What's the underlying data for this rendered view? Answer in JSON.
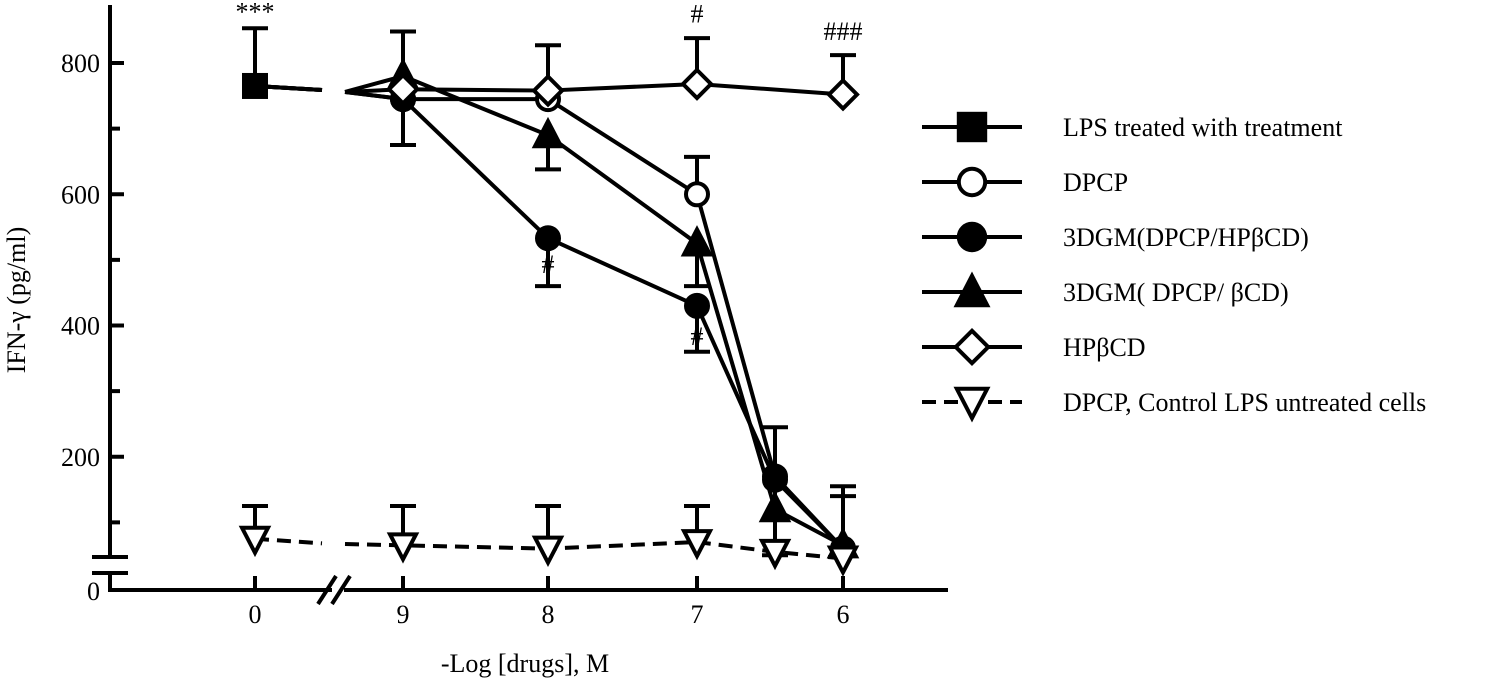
{
  "chart_data": {
    "type": "line",
    "title": "",
    "xlabel": "-Log [drugs], M",
    "ylabel": "IFN-γ (pg/ml)",
    "x_tick_labels": [
      "0",
      "9",
      "8",
      "7",
      "6"
    ],
    "x_values": [
      0,
      9,
      8,
      7,
      6.5,
      6
    ],
    "y_ticks": [
      0,
      200,
      400,
      600,
      800
    ],
    "ylim": [
      0,
      850
    ],
    "axis_breaks": [
      "x between 0 and 9",
      "y between 0 and 200"
    ],
    "legend_position": "right",
    "series": [
      {
        "name": "LPS treated with treatment",
        "marker": "square-filled",
        "line": "solid",
        "x": [
          0
        ],
        "y": [
          765
        ],
        "err": [
          88
        ]
      },
      {
        "name": "DPCP",
        "marker": "circle-open",
        "line": "solid",
        "x": [
          9,
          8,
          7,
          6.5,
          6
        ],
        "y": [
          745,
          745,
          600,
          170,
          60
        ]
      },
      {
        "name": "3DGM(DPCP/HPβCD)",
        "marker": "circle-filled",
        "line": "solid",
        "x": [
          9,
          8,
          7,
          6.5,
          6
        ],
        "y": [
          745,
          533,
          430,
          165,
          60
        ]
      },
      {
        "name": "3DGM( DPCP/ βCD)",
        "marker": "triangle-up-filled",
        "line": "solid",
        "x": [
          9,
          8,
          7,
          6.5,
          6
        ],
        "y": [
          780,
          690,
          525,
          120,
          65
        ]
      },
      {
        "name": "HPβCD",
        "marker": "diamond-open",
        "line": "solid",
        "x": [
          9,
          8,
          7,
          6
        ],
        "y": [
          760,
          758,
          768,
          752
        ]
      },
      {
        "name": "DPCP, Control LPS untreated cells",
        "marker": "triangle-down-open",
        "line": "dashed",
        "x": [
          0,
          9,
          8,
          7,
          6.5,
          6
        ],
        "y": [
          75,
          65,
          60,
          70,
          55,
          45
        ]
      }
    ],
    "error_bars": [
      {
        "x": 0,
        "y": 765,
        "top": 853
      },
      {
        "x": 9,
        "y": 760,
        "top": 848,
        "bottom": 675
      },
      {
        "x": 8,
        "y": 758,
        "top": 827
      },
      {
        "x": 8,
        "y": 690,
        "bottom": 638
      },
      {
        "x": 8,
        "y": 533,
        "bottom": 460
      },
      {
        "x": 7,
        "y": 768,
        "top": 838
      },
      {
        "x": 7,
        "y": 600,
        "top": 657
      },
      {
        "x": 7,
        "y": 525,
        "bottom": 460
      },
      {
        "x": 7,
        "y": 430,
        "bottom": 360
      },
      {
        "x": 6.5,
        "y": 170,
        "top": 245,
        "bottom": 50
      },
      {
        "x": 6,
        "y": 752,
        "top": 812
      },
      {
        "x": 6,
        "y": 65,
        "top": 155
      },
      {
        "x": 0,
        "y": 75,
        "top": 125
      },
      {
        "x": 9,
        "y": 65,
        "top": 125
      },
      {
        "x": 8,
        "y": 60,
        "top": 125
      },
      {
        "x": 7,
        "y": 70,
        "top": 125
      },
      {
        "x": 6,
        "y": 45,
        "top": 140
      }
    ],
    "annotations": [
      {
        "text": "***",
        "x": 0,
        "y": 865
      },
      {
        "text": "#",
        "x": 7,
        "y": 862
      },
      {
        "text": "###",
        "x": 6,
        "y": 835
      },
      {
        "text": "#",
        "x": 8,
        "y": 480
      },
      {
        "text": "#",
        "x": 7,
        "y": 370
      }
    ]
  }
}
